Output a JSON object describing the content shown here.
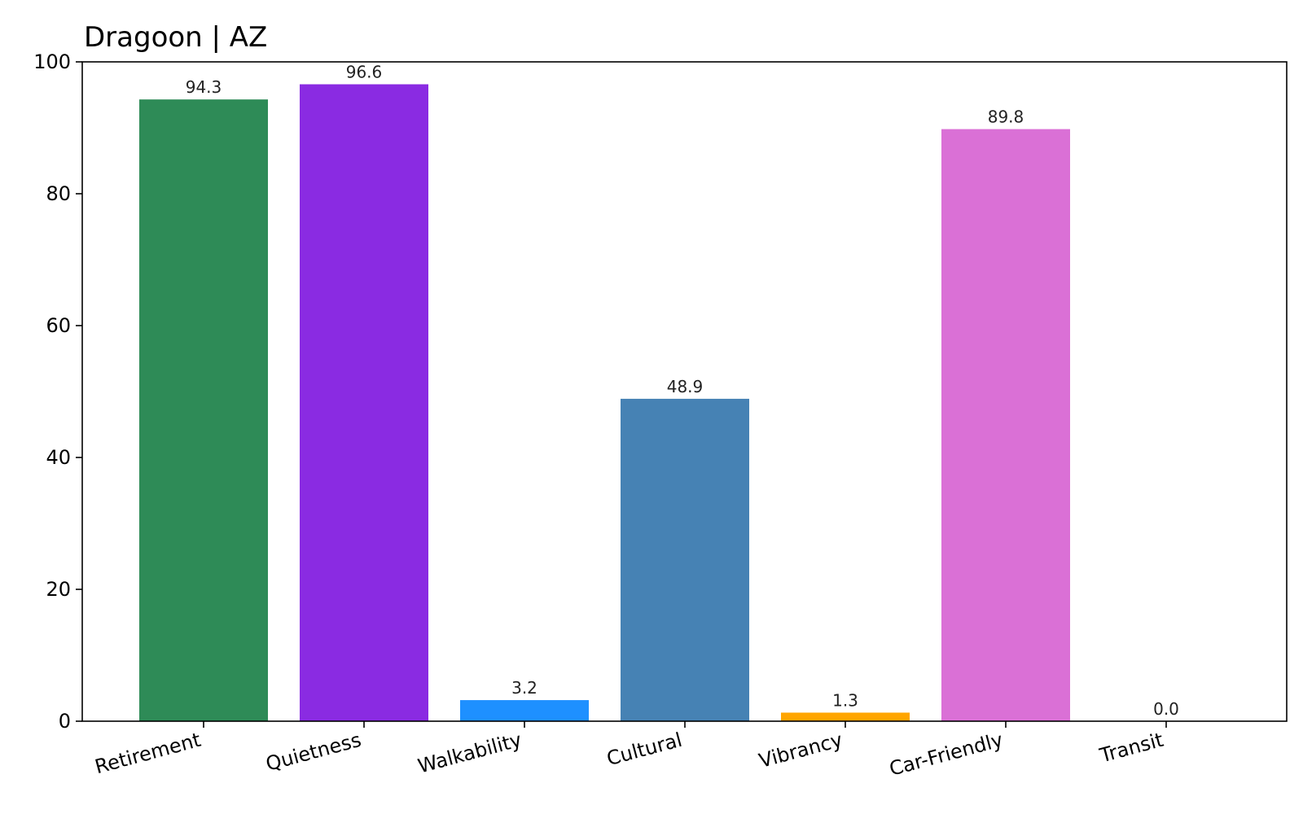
{
  "chart_data": {
    "type": "bar",
    "title": "Dragoon | AZ",
    "xlabel": "",
    "ylabel": "",
    "categories": [
      "Retirement",
      "Quietness",
      "Walkability",
      "Cultural",
      "Vibrancy",
      "Car-Friendly",
      "Transit"
    ],
    "values": [
      94.3,
      96.6,
      3.2,
      48.9,
      1.3,
      89.8,
      0.0
    ],
    "value_labels": [
      "94.3",
      "96.6",
      "3.2",
      "48.9",
      "1.3",
      "89.8",
      "0.0"
    ],
    "colors": [
      "#2e8b57",
      "#8a2be2",
      "#1e90ff",
      "#4682b4",
      "#ffa500",
      "#da70d6",
      "#708090"
    ],
    "ylim": [
      0,
      100
    ],
    "yticks": [
      0,
      20,
      40,
      60,
      80,
      100
    ],
    "ytick_labels": [
      "0",
      "20",
      "40",
      "60",
      "80",
      "100"
    ],
    "grid": false,
    "legend": "none"
  }
}
